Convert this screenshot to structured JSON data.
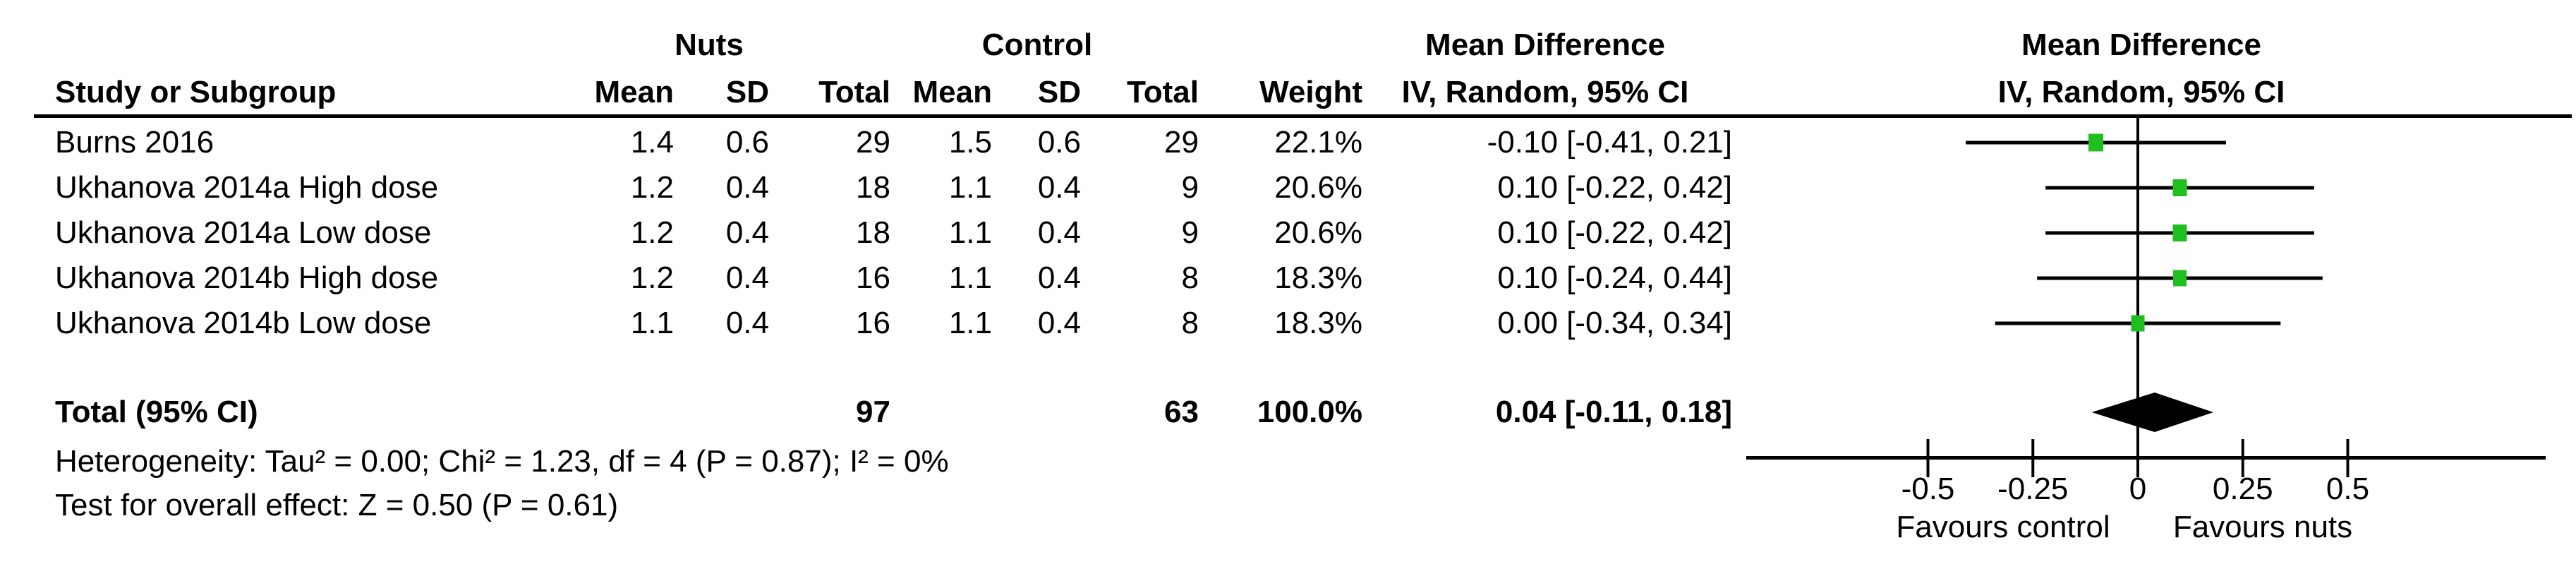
{
  "figure": {
    "background": "#ffffff",
    "ink": "#000000"
  },
  "chart_data": {
    "type": "forest",
    "effect_measure": "Mean Difference",
    "model": "IV, Random, 95% CI",
    "headers": {
      "study": "Study or Subgroup",
      "group_experimental": "Nuts",
      "group_control": "Control",
      "mean": "Mean",
      "sd": "SD",
      "total": "Total",
      "weight": "Weight",
      "effect": "Mean Difference",
      "method": "IV, Random, 95% CI"
    },
    "studies": [
      {
        "label": "Burns 2016",
        "nuts_mean": "1.4",
        "nuts_sd": "0.6",
        "nuts_total": "29",
        "control_mean": "1.5",
        "control_sd": "0.6",
        "control_total": "29",
        "weight": "22.1%",
        "weight_pct": 22.1,
        "md_label": "-0.10 [-0.41, 0.21]",
        "estimate": -0.1,
        "ci_low": -0.41,
        "ci_high": 0.21
      },
      {
        "label": "Ukhanova 2014a High dose",
        "nuts_mean": "1.2",
        "nuts_sd": "0.4",
        "nuts_total": "18",
        "control_mean": "1.1",
        "control_sd": "0.4",
        "control_total": "9",
        "weight": "20.6%",
        "weight_pct": 20.6,
        "md_label": "0.10 [-0.22, 0.42]",
        "estimate": 0.1,
        "ci_low": -0.22,
        "ci_high": 0.42
      },
      {
        "label": "Ukhanova 2014a Low dose",
        "nuts_mean": "1.2",
        "nuts_sd": "0.4",
        "nuts_total": "18",
        "control_mean": "1.1",
        "control_sd": "0.4",
        "control_total": "9",
        "weight": "20.6%",
        "weight_pct": 20.6,
        "md_label": "0.10 [-0.22, 0.42]",
        "estimate": 0.1,
        "ci_low": -0.22,
        "ci_high": 0.42
      },
      {
        "label": "Ukhanova 2014b High dose",
        "nuts_mean": "1.2",
        "nuts_sd": "0.4",
        "nuts_total": "16",
        "control_mean": "1.1",
        "control_sd": "0.4",
        "control_total": "8",
        "weight": "18.3%",
        "weight_pct": 18.3,
        "md_label": "0.10 [-0.24, 0.44]",
        "estimate": 0.1,
        "ci_low": -0.24,
        "ci_high": 0.44
      },
      {
        "label": "Ukhanova 2014b Low dose",
        "nuts_mean": "1.1",
        "nuts_sd": "0.4",
        "nuts_total": "16",
        "control_mean": "1.1",
        "control_sd": "0.4",
        "control_total": "8",
        "weight": "18.3%",
        "weight_pct": 18.3,
        "md_label": "0.00 [-0.34, 0.34]",
        "estimate": 0.0,
        "ci_low": -0.34,
        "ci_high": 0.34
      }
    ],
    "total": {
      "label": "Total (95% CI)",
      "nuts_total": "97",
      "control_total": "63",
      "weight": "100.0%",
      "md_label": "0.04 [-0.11, 0.18]",
      "estimate": 0.04,
      "ci_low": -0.11,
      "ci_high": 0.18
    },
    "axis": {
      "min": -0.5,
      "max": 0.5,
      "ticks": [
        -0.5,
        -0.25,
        0,
        0.25,
        0.5
      ],
      "tick_labels": [
        "-0.5",
        "-0.25",
        "0",
        "0.25",
        "0.5"
      ],
      "favours_left": "Favours control",
      "favours_right": "Favours nuts"
    },
    "footnotes": {
      "heterogeneity": "Heterogeneity: Tau² = 0.00; Chi² = 1.23, df = 4 (P = 0.87); I² = 0%",
      "overall_effect": "Test for overall effect: Z = 0.50 (P = 0.61)"
    },
    "colors": {
      "marker_green": "#1fbf1f",
      "line_black": "#000000",
      "diamond_black": "#000000"
    }
  }
}
